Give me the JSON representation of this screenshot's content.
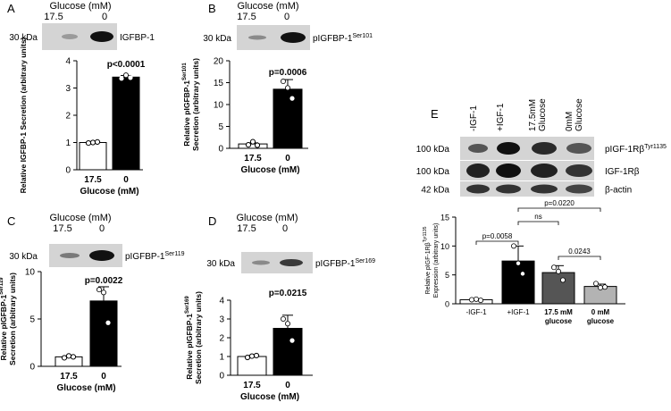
{
  "chart_data": [
    {
      "type": "bar",
      "panel": "A",
      "header": "Glucose (mM)",
      "lane_labels": [
        "17.5",
        "0"
      ],
      "mw_label": "30 kDa",
      "blot_label": "IGFBP-1",
      "blot_label_sup": "",
      "categories": [
        "17.5",
        "0"
      ],
      "values": [
        1.0,
        3.4
      ],
      "errors": [
        0.02,
        0.06
      ],
      "points": [
        [
          0.98,
          1.0,
          1.02
        ],
        [
          3.35,
          3.47,
          3.38
        ]
      ],
      "ylim": [
        0,
        4
      ],
      "yticks": [
        "0",
        "1",
        "2",
        "3",
        "4"
      ],
      "ylabel": "Relative IGFBP-1 Secretion (arbitrary units)",
      "ylabel_sup": "",
      "xlabel": "Glucose (mM)",
      "pvalue": "p<0.0001",
      "bar_fills": [
        "#ffffff",
        "#000000"
      ]
    },
    {
      "type": "bar",
      "panel": "B",
      "header": "Glucose (mM)",
      "lane_labels": [
        "17.5",
        "0"
      ],
      "mw_label": "30 kDa",
      "blot_label": "pIGFBP-1",
      "blot_label_sup": "Ser101",
      "categories": [
        "17.5",
        "0"
      ],
      "values": [
        1.0,
        13.5
      ],
      "errors": [
        0.25,
        2.2
      ],
      "points": [
        [
          0.8,
          1.5,
          0.7
        ],
        [
          15.3,
          13.8,
          11.4
        ]
      ],
      "ylim": [
        0,
        20
      ],
      "yticks": [
        "0",
        "5",
        "10",
        "15",
        "20"
      ],
      "ylabel": "Relative pIGFBP-1",
      "ylabel_sup": "Ser101",
      "ylabel2": "Secretion (arbitrary units)",
      "xlabel": "Glucose (mM)",
      "pvalue": "p=0.0006",
      "bar_fills": [
        "#ffffff",
        "#000000"
      ]
    },
    {
      "type": "bar",
      "panel": "C",
      "header": "Glucose (mM)",
      "lane_labels": [
        "17.5",
        "0"
      ],
      "mw_label": "30 kDa",
      "blot_label": "pIGFBP-1",
      "blot_label_sup": "Ser119",
      "categories": [
        "17.5",
        "0"
      ],
      "values": [
        1.0,
        6.9
      ],
      "errors": [
        0.1,
        1.5
      ],
      "points": [
        [
          0.9,
          1.1,
          1.0
        ],
        [
          8.1,
          7.8,
          4.6
        ]
      ],
      "ylim": [
        0,
        10
      ],
      "yticks": [
        "0",
        "5",
        "10"
      ],
      "ylabel": "Relative pIGFBP-1",
      "ylabel_sup": "Ser119",
      "ylabel2": "Secretion (arbitrary units)",
      "xlabel": "Glucose (mM)",
      "pvalue": "p=0.0022",
      "bar_fills": [
        "#ffffff",
        "#000000"
      ]
    },
    {
      "type": "bar",
      "panel": "D",
      "header": "Glucose (mM)",
      "lane_labels": [
        "17.5",
        "0"
      ],
      "mw_label": "30 kDa",
      "blot_label": "pIGFBP-1",
      "blot_label_sup": "Ser169",
      "categories": [
        "17.5",
        "0"
      ],
      "values": [
        1.0,
        2.5
      ],
      "errors": [
        0.05,
        0.7
      ],
      "points": [
        [
          0.95,
          1.02,
          1.05
        ],
        [
          3.0,
          2.75,
          1.85
        ]
      ],
      "ylim": [
        0,
        4
      ],
      "yticks": [
        "0",
        "1",
        "2",
        "3",
        "4"
      ],
      "ylabel": "Relative pIGFBP-1",
      "ylabel_sup": "Ser169",
      "ylabel2": "Secretion (arbitrary units)",
      "xlabel": "Glucose (mM)",
      "pvalue": "p=0.0215",
      "bar_fills": [
        "#ffffff",
        "#000000"
      ]
    },
    {
      "type": "bar",
      "panel": "E",
      "lane_labels": [
        "-IGF-1",
        "+IGF-1",
        "17.5mM Glucose",
        "0mM Glucose"
      ],
      "blot_rows": [
        {
          "mw": "100 kDa",
          "label": "pIGF-1Rβ",
          "sup": "Tyr1135"
        },
        {
          "mw": "100 kDa",
          "label": "IGF-1Rβ",
          "sup": ""
        },
        {
          "mw": "42 kDa",
          "label": "β-actin",
          "sup": ""
        }
      ],
      "categories": [
        "-IGF-1",
        "+IGF-1",
        "17.5 mM glucose",
        "0 mM glucose"
      ],
      "values": [
        0.7,
        7.4,
        5.4,
        3.0
      ],
      "errors": [
        0.1,
        2.6,
        1.2,
        0.4
      ],
      "points": [
        [
          0.7,
          0.8,
          0.6
        ],
        [
          10.0,
          7.0,
          5.2
        ],
        [
          6.3,
          5.6,
          4.1
        ],
        [
          3.5,
          2.8,
          2.9
        ]
      ],
      "ylim": [
        0,
        15
      ],
      "yticks": [
        "0",
        "5",
        "10",
        "15"
      ],
      "ylabel": "Relative pIGF-1Rβ",
      "ylabel_sup": "Tyr1135",
      "ylabel2": "Expression (arbitrary units)",
      "comparisons": [
        {
          "from": 0,
          "to": 1,
          "label": "p=0.0058"
        },
        {
          "from": 1,
          "to": 2,
          "label": "ns"
        },
        {
          "from": 1,
          "to": 3,
          "label": "p=0.0220"
        },
        {
          "from": 2,
          "to": 3,
          "label": "0.0243"
        }
      ],
      "bar_fills": [
        "#ffffff",
        "#000000",
        "#555555",
        "#b3b3b3"
      ]
    }
  ]
}
